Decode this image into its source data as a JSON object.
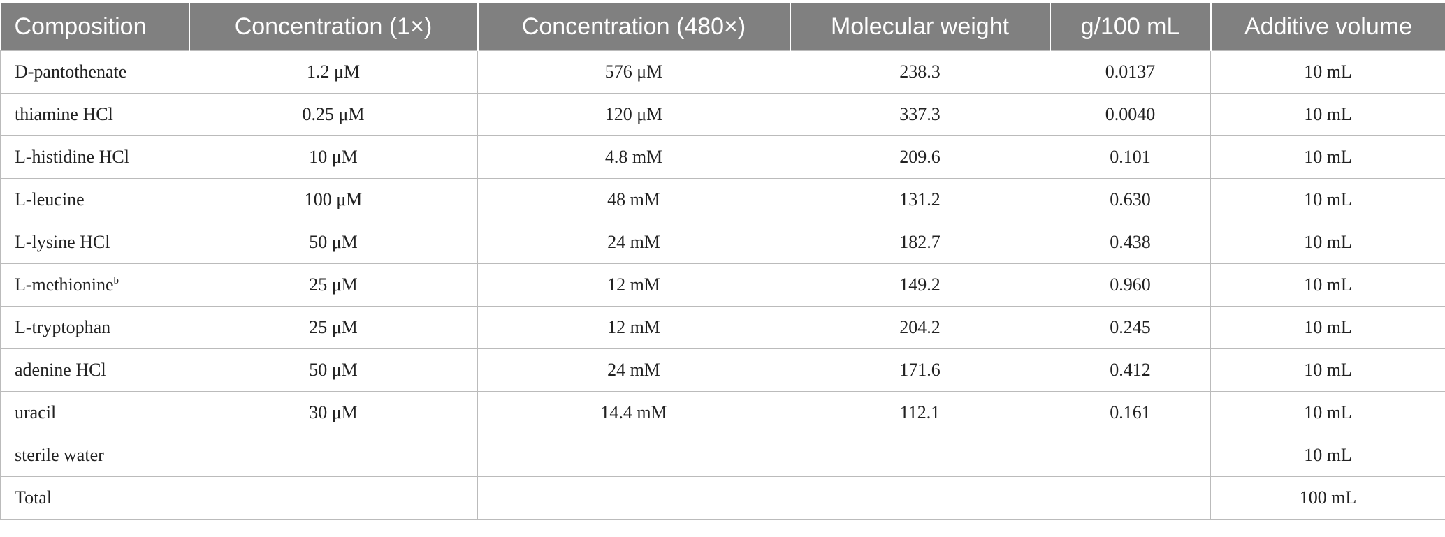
{
  "table": {
    "header": [
      "Composition",
      "Concentration (1×)",
      "Concentration (480×)",
      "Molecular weight",
      "g/100 mL",
      "Additive volume"
    ],
    "rows": [
      {
        "cells": [
          "D-pantothenate",
          "1.2 μM",
          "576 μM",
          "238.3",
          "0.0137",
          "10 mL"
        ]
      },
      {
        "cells": [
          "thiamine HCl",
          "0.25 μM",
          "120 μM",
          "337.3",
          "0.0040",
          "10 mL"
        ]
      },
      {
        "cells": [
          "L-histidine HCl",
          "10 μM",
          "4.8 mM",
          "209.6",
          "0.101",
          "10 mL"
        ]
      },
      {
        "cells": [
          "L-leucine",
          "100 μM",
          "48 mM",
          "131.2",
          "0.630",
          "10 mL"
        ]
      },
      {
        "cells": [
          "L-lysine HCl",
          "50 μM",
          "24 mM",
          "182.7",
          "0.438",
          "10 mL"
        ]
      },
      {
        "cells": [
          "L-methionine",
          "25 μM",
          "12 mM",
          "149.2",
          "0.960",
          "10 mL"
        ],
        "note": "b"
      },
      {
        "cells": [
          "L-tryptophan",
          "25 μM",
          "12 mM",
          "204.2",
          "0.245",
          "10 mL"
        ]
      },
      {
        "cells": [
          "adenine HCl",
          "50 μM",
          "24 mM",
          "171.6",
          "0.412",
          "10 mL"
        ]
      },
      {
        "cells": [
          "uracil",
          "30 μM",
          "14.4 mM",
          "112.1",
          "0.161",
          "10 mL"
        ]
      },
      {
        "cells": [
          "sterile water",
          null,
          null,
          null,
          null,
          "10 mL"
        ]
      },
      {
        "cells": [
          "Total",
          null,
          null,
          null,
          null,
          "100 mL"
        ]
      }
    ]
  }
}
